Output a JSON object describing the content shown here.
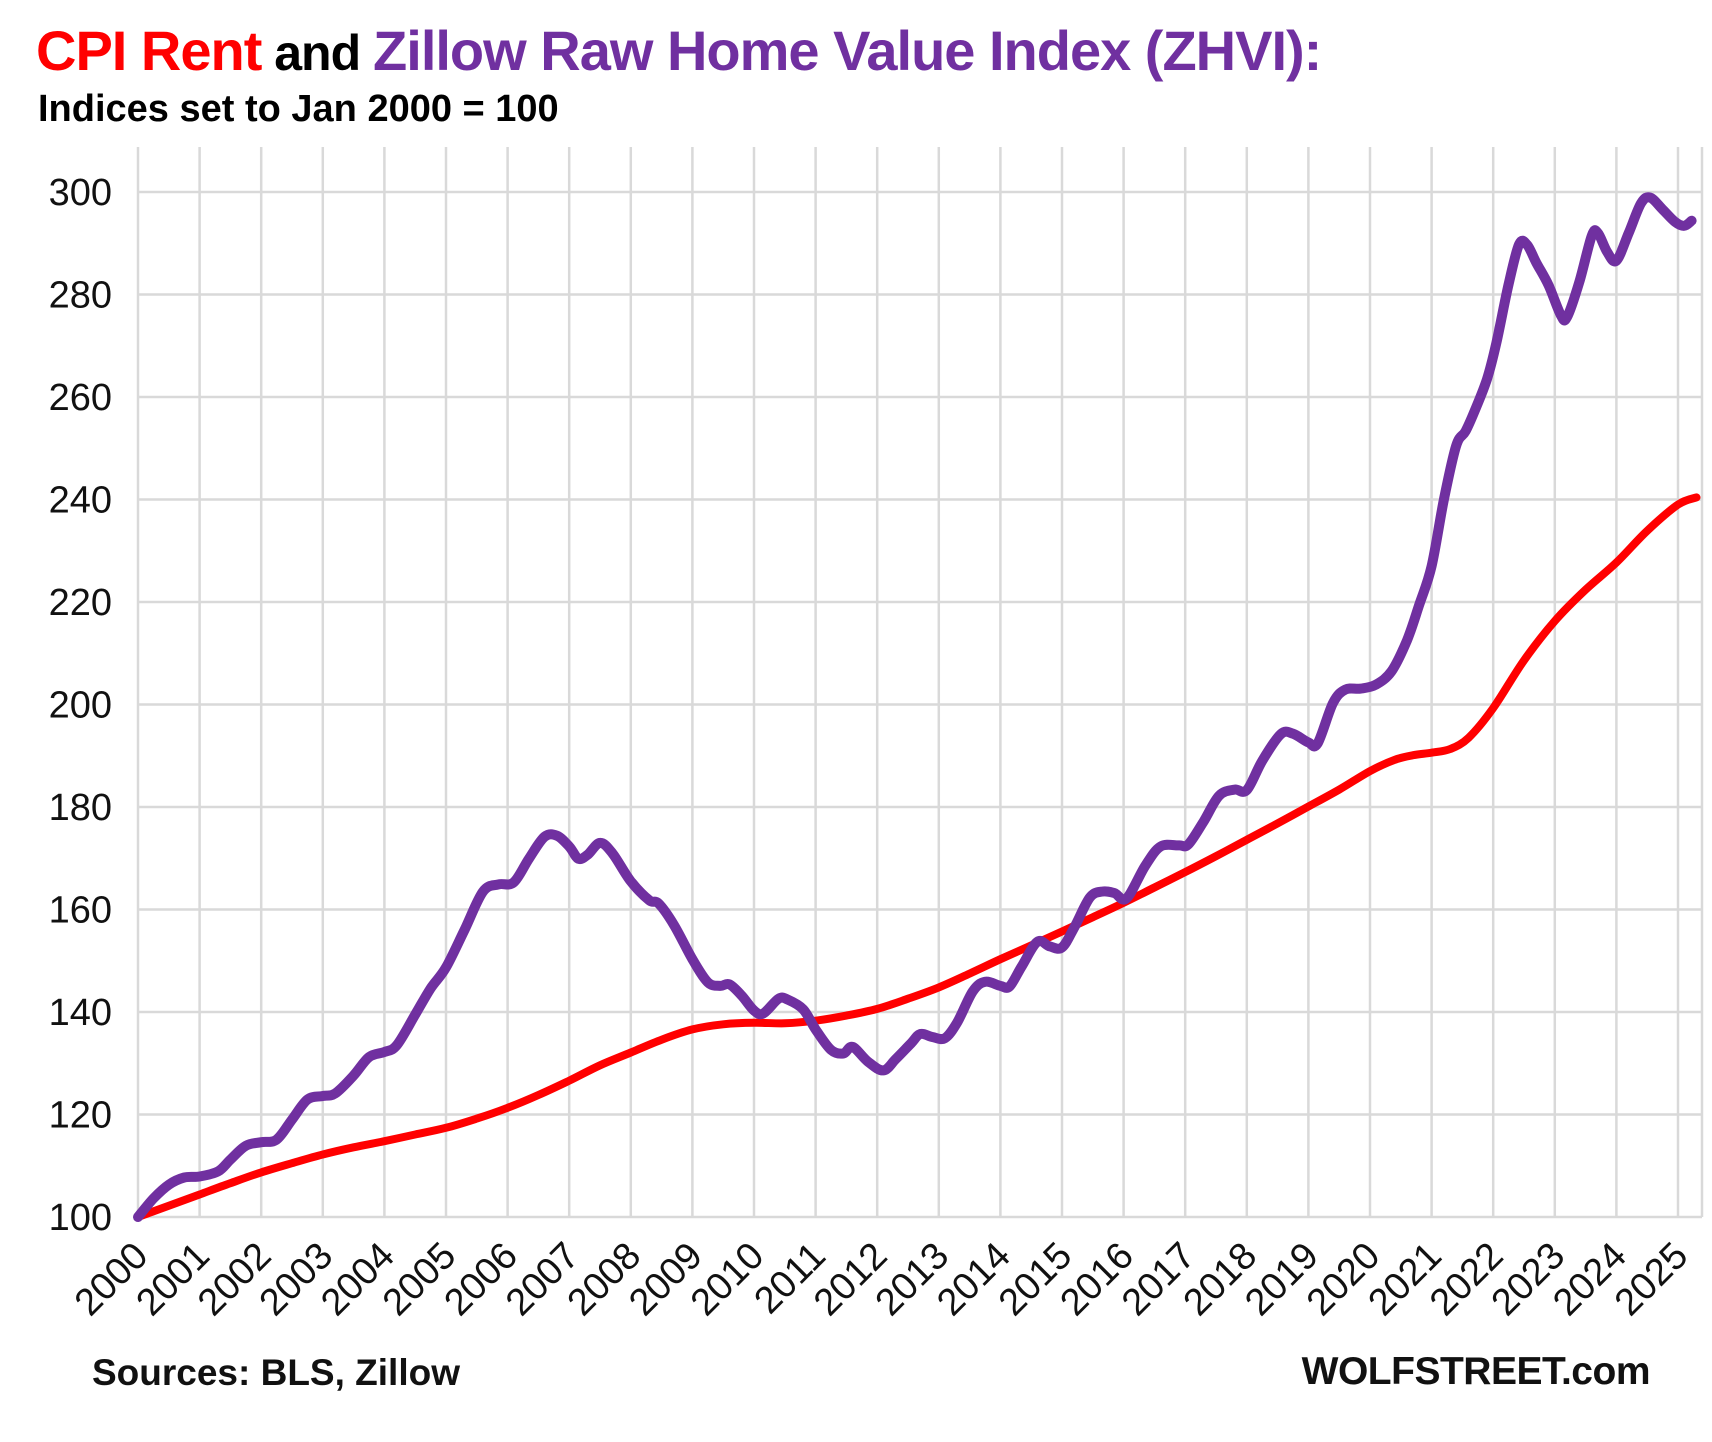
{
  "page": {
    "background": "#FFFFFF"
  },
  "header": {
    "title_part1": "CPI Rent",
    "title_part2": " and ",
    "title_part3": "Zillow Raw Home Value Index (ZHVI):",
    "title_color1": "#FF0000",
    "title_color2": "#000000",
    "title_color3": "#7030A0",
    "subtitle": "Indices set to Jan 2000 = 100"
  },
  "footer": {
    "left": "Sources: BLS, Zillow",
    "right": "WOLFSTREET.com"
  },
  "chart_data": {
    "type": "line",
    "title": "CPI Rent and Zillow Raw Home Value Index (ZHVI)",
    "subtitle": "Indices set to Jan 2000 = 100",
    "xlabel": "",
    "ylabel": "",
    "grid": {
      "show": true,
      "color": "#D9D9D9"
    },
    "legend_position": "none",
    "x_axis": {
      "range": [
        2000,
        2025.4
      ],
      "ticks": [
        "2000",
        "2001",
        "2002",
        "2003",
        "2004",
        "2005",
        "2006",
        "2007",
        "2008",
        "2009",
        "2010",
        "2011",
        "2012",
        "2013",
        "2014",
        "2015",
        "2016",
        "2017",
        "2018",
        "2019",
        "2020",
        "2021",
        "2022",
        "2023",
        "2024",
        "2025"
      ]
    },
    "y_axis": {
      "range": [
        100,
        309
      ],
      "ticks": [
        100,
        120,
        140,
        160,
        180,
        200,
        220,
        240,
        260,
        280,
        300
      ]
    },
    "series": [
      {
        "name": "CPI Rent",
        "color": "#FF0000",
        "stroke_width": 8,
        "points": [
          [
            2000.0,
            100
          ],
          [
            2000.5,
            102.2
          ],
          [
            2001.0,
            104.4
          ],
          [
            2001.5,
            106.6
          ],
          [
            2002.0,
            108.7
          ],
          [
            2002.5,
            110.5
          ],
          [
            2003.0,
            112.2
          ],
          [
            2003.5,
            113.6
          ],
          [
            2004.0,
            114.8
          ],
          [
            2004.5,
            116.1
          ],
          [
            2005.0,
            117.4
          ],
          [
            2005.5,
            119.2
          ],
          [
            2006.0,
            121.3
          ],
          [
            2006.5,
            123.8
          ],
          [
            2007.0,
            126.6
          ],
          [
            2007.5,
            129.6
          ],
          [
            2008.0,
            132.1
          ],
          [
            2008.5,
            134.6
          ],
          [
            2009.0,
            136.6
          ],
          [
            2009.5,
            137.6
          ],
          [
            2010.0,
            137.9
          ],
          [
            2010.5,
            137.8
          ],
          [
            2011.0,
            138.3
          ],
          [
            2011.5,
            139.3
          ],
          [
            2012.0,
            140.6
          ],
          [
            2012.5,
            142.6
          ],
          [
            2013.0,
            144.8
          ],
          [
            2013.5,
            147.5
          ],
          [
            2014.0,
            150.3
          ],
          [
            2014.5,
            153.0
          ],
          [
            2015.0,
            155.7
          ],
          [
            2015.5,
            158.5
          ],
          [
            2016.0,
            161.3
          ],
          [
            2016.5,
            164.3
          ],
          [
            2017.0,
            167.3
          ],
          [
            2017.5,
            170.4
          ],
          [
            2018.0,
            173.6
          ],
          [
            2018.5,
            176.8
          ],
          [
            2019.0,
            180.1
          ],
          [
            2019.5,
            183.4
          ],
          [
            2020.0,
            187.0
          ],
          [
            2020.4,
            189.2
          ],
          [
            2020.7,
            190.1
          ],
          [
            2021.0,
            190.6
          ],
          [
            2021.3,
            191.3
          ],
          [
            2021.6,
            193.5
          ],
          [
            2022.0,
            199.3
          ],
          [
            2022.5,
            208.6
          ],
          [
            2023.0,
            216.3
          ],
          [
            2023.5,
            222.4
          ],
          [
            2024.0,
            227.7
          ],
          [
            2024.5,
            233.9
          ],
          [
            2025.0,
            239.0
          ],
          [
            2025.3,
            240.4
          ]
        ]
      },
      {
        "name": "Zillow Raw Home Value Index (ZHVI)",
        "color": "#7030A0",
        "stroke_width": 10,
        "points": [
          [
            2000.0,
            100
          ],
          [
            2000.25,
            103.6
          ],
          [
            2000.5,
            106.3
          ],
          [
            2000.75,
            107.7
          ],
          [
            2001.0,
            107.9
          ],
          [
            2001.3,
            108.9
          ],
          [
            2001.5,
            111.2
          ],
          [
            2001.75,
            113.9
          ],
          [
            2002.0,
            114.6
          ],
          [
            2002.25,
            115.1
          ],
          [
            2002.5,
            119.0
          ],
          [
            2002.75,
            122.9
          ],
          [
            2003.0,
            123.6
          ],
          [
            2003.2,
            124.1
          ],
          [
            2003.5,
            127.6
          ],
          [
            2003.75,
            131.2
          ],
          [
            2004.0,
            132.2
          ],
          [
            2004.2,
            133.5
          ],
          [
            2004.5,
            139.5
          ],
          [
            2004.75,
            144.6
          ],
          [
            2005.0,
            148.7
          ],
          [
            2005.3,
            156.0
          ],
          [
            2005.6,
            163.5
          ],
          [
            2005.85,
            164.9
          ],
          [
            2006.1,
            165.3
          ],
          [
            2006.35,
            170.0
          ],
          [
            2006.6,
            174.2
          ],
          [
            2006.8,
            174.4
          ],
          [
            2007.0,
            172.3
          ],
          [
            2007.15,
            169.9
          ],
          [
            2007.3,
            170.7
          ],
          [
            2007.5,
            173.0
          ],
          [
            2007.7,
            171.0
          ],
          [
            2008.0,
            165.5
          ],
          [
            2008.3,
            161.8
          ],
          [
            2008.45,
            161.2
          ],
          [
            2008.7,
            157.0
          ],
          [
            2009.0,
            150.3
          ],
          [
            2009.25,
            145.8
          ],
          [
            2009.45,
            145.1
          ],
          [
            2009.6,
            145.4
          ],
          [
            2009.8,
            143.2
          ],
          [
            2010.0,
            140.3
          ],
          [
            2010.15,
            139.7
          ],
          [
            2010.4,
            142.6
          ],
          [
            2010.55,
            142.4
          ],
          [
            2010.8,
            140.5
          ],
          [
            2011.0,
            136.6
          ],
          [
            2011.25,
            132.6
          ],
          [
            2011.45,
            131.9
          ],
          [
            2011.6,
            133.2
          ],
          [
            2011.85,
            130.3
          ],
          [
            2012.1,
            128.6
          ],
          [
            2012.3,
            130.8
          ],
          [
            2012.55,
            133.9
          ],
          [
            2012.7,
            135.7
          ],
          [
            2012.9,
            135.1
          ],
          [
            2013.1,
            134.9
          ],
          [
            2013.3,
            138.0
          ],
          [
            2013.55,
            144.0
          ],
          [
            2013.75,
            145.9
          ],
          [
            2014.0,
            145.1
          ],
          [
            2014.15,
            145.0
          ],
          [
            2014.35,
            149.0
          ],
          [
            2014.6,
            153.7
          ],
          [
            2014.8,
            152.8
          ],
          [
            2015.0,
            152.6
          ],
          [
            2015.2,
            156.5
          ],
          [
            2015.45,
            162.3
          ],
          [
            2015.65,
            163.5
          ],
          [
            2015.85,
            163.2
          ],
          [
            2016.05,
            162.2
          ],
          [
            2016.35,
            168.5
          ],
          [
            2016.6,
            172.3
          ],
          [
            2016.9,
            172.5
          ],
          [
            2017.05,
            172.7
          ],
          [
            2017.3,
            177.2
          ],
          [
            2017.55,
            182.2
          ],
          [
            2017.8,
            183.4
          ],
          [
            2018.0,
            183.3
          ],
          [
            2018.25,
            189.0
          ],
          [
            2018.55,
            194.2
          ],
          [
            2018.75,
            194.3
          ],
          [
            2019.0,
            192.6
          ],
          [
            2019.15,
            192.4
          ],
          [
            2019.4,
            200.3
          ],
          [
            2019.6,
            202.9
          ],
          [
            2019.85,
            203.1
          ],
          [
            2020.1,
            203.9
          ],
          [
            2020.35,
            206.5
          ],
          [
            2020.6,
            212.5
          ],
          [
            2020.8,
            219.5
          ],
          [
            2021.0,
            227.0
          ],
          [
            2021.2,
            240.0
          ],
          [
            2021.4,
            250.5
          ],
          [
            2021.55,
            253.3
          ],
          [
            2021.7,
            257.3
          ],
          [
            2021.9,
            263.5
          ],
          [
            2022.05,
            270.5
          ],
          [
            2022.25,
            282.0
          ],
          [
            2022.42,
            289.8
          ],
          [
            2022.55,
            289.7
          ],
          [
            2022.7,
            286.2
          ],
          [
            2022.9,
            281.8
          ],
          [
            2023.1,
            275.9
          ],
          [
            2023.2,
            275.6
          ],
          [
            2023.4,
            282.5
          ],
          [
            2023.6,
            291.5
          ],
          [
            2023.7,
            292.0
          ],
          [
            2023.85,
            288.3
          ],
          [
            2024.0,
            286.6
          ],
          [
            2024.2,
            292.0
          ],
          [
            2024.4,
            297.8
          ],
          [
            2024.55,
            298.9
          ],
          [
            2024.75,
            296.6
          ],
          [
            2024.95,
            294.2
          ],
          [
            2025.1,
            293.4
          ],
          [
            2025.22,
            294.4
          ]
        ]
      }
    ]
  }
}
